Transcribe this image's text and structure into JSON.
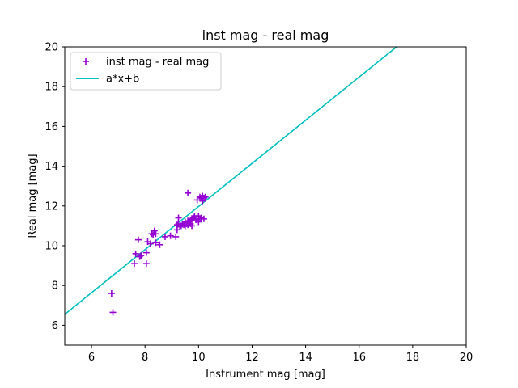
{
  "chart_data": {
    "type": "scatter",
    "title": "inst mag - real mag",
    "xlabel": "Instrument mag [mag]",
    "ylabel": "Real mag [mag]",
    "xlim": [
      5,
      20
    ],
    "ylim": [
      5,
      20
    ],
    "xticks": [
      6,
      8,
      10,
      12,
      14,
      16,
      18,
      20
    ],
    "yticks": [
      6,
      8,
      10,
      12,
      14,
      16,
      18,
      20
    ],
    "grid": false,
    "legend_position": "upper-left",
    "series": [
      {
        "name": "inst mag - real mag",
        "kind": "scatter",
        "marker": "plus",
        "color": "#9400d3",
        "x": [
          6.75,
          6.8,
          7.6,
          7.65,
          7.75,
          7.8,
          7.85,
          8.05,
          8.05,
          8.1,
          8.2,
          8.25,
          8.3,
          8.35,
          8.4,
          8.4,
          8.55,
          8.75,
          8.95,
          9.15,
          9.2,
          9.2,
          9.25,
          9.25,
          9.3,
          9.35,
          9.4,
          9.45,
          9.5,
          9.5,
          9.55,
          9.6,
          9.6,
          9.65,
          9.7,
          9.7,
          9.75,
          9.75,
          9.8,
          9.85,
          9.9,
          9.95,
          10.0,
          10.0,
          10.05,
          10.05,
          10.1,
          10.1,
          10.15,
          10.15,
          10.2,
          10.2,
          10.25,
          9.6
        ],
        "y": [
          7.6,
          6.65,
          9.1,
          9.6,
          10.3,
          9.45,
          9.5,
          9.1,
          9.65,
          10.2,
          10.1,
          10.6,
          10.55,
          10.75,
          10.6,
          10.15,
          10.05,
          10.45,
          10.5,
          10.45,
          10.8,
          11.05,
          11.4,
          11.1,
          10.95,
          11.0,
          11.1,
          11.05,
          11.2,
          11.0,
          11.1,
          11.05,
          11.25,
          11.2,
          11.1,
          11.3,
          11.35,
          11.0,
          11.4,
          11.5,
          11.3,
          12.3,
          11.2,
          11.5,
          12.45,
          11.35,
          12.4,
          11.4,
          12.5,
          12.25,
          11.35,
          12.4,
          12.45,
          12.65
        ]
      },
      {
        "name": "a*x+b",
        "kind": "line",
        "color": "#00bfbf",
        "x": [
          5,
          17.4
        ],
        "y": [
          6.55,
          20
        ]
      }
    ]
  }
}
